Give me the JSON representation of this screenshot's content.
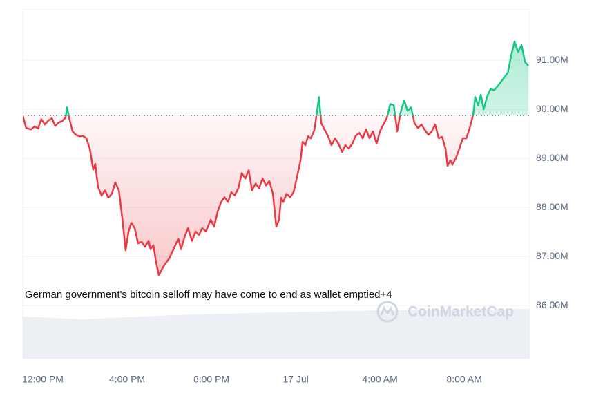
{
  "chart_data": {
    "type": "line",
    "annotation": "German government's bitcoin selloff may have come to end as wallet emptied+4",
    "watermark": "CoinMarketCap",
    "baseline": 89.87,
    "color_above": "#16c784",
    "color_below": "#ea3943",
    "ylim": [
      84.92,
      92.03
    ],
    "yticks": [
      {
        "value": 86,
        "label": "86.00M"
      },
      {
        "value": 87,
        "label": "87.00M"
      },
      {
        "value": 88,
        "label": "88.00M"
      },
      {
        "value": 89,
        "label": "89.00M"
      },
      {
        "value": 90,
        "label": "90.00M"
      },
      {
        "value": 91,
        "label": "91.00M"
      }
    ],
    "xlim": [
      -0.95,
      23.11
    ],
    "xticks": [
      {
        "value": 0,
        "label": "12:00 PM"
      },
      {
        "value": 4,
        "label": "4:00 PM"
      },
      {
        "value": 8,
        "label": "8:00 PM"
      },
      {
        "value": 12,
        "label": "17 Jul"
      },
      {
        "value": 16,
        "label": "4:00 AM"
      },
      {
        "value": 20,
        "label": "8:00 AM"
      }
    ],
    "x": [
      -0.95,
      -0.79,
      -0.56,
      -0.39,
      -0.23,
      -0.07,
      0.1,
      0.26,
      0.43,
      0.59,
      0.75,
      0.92,
      1.08,
      1.15,
      1.25,
      1.41,
      1.57,
      1.74,
      1.9,
      2.07,
      2.23,
      2.39,
      2.49,
      2.62,
      2.79,
      2.95,
      3.11,
      3.28,
      3.44,
      3.61,
      3.77,
      3.93,
      4.07,
      4.2,
      4.36,
      4.52,
      4.69,
      4.85,
      5.02,
      5.11,
      5.25,
      5.38,
      5.51,
      5.67,
      5.84,
      6.0,
      6.16,
      6.33,
      6.43,
      6.56,
      6.72,
      6.89,
      7.08,
      7.25,
      7.41,
      7.57,
      7.74,
      7.97,
      8.13,
      8.3,
      8.46,
      8.62,
      8.79,
      8.95,
      9.11,
      9.28,
      9.44,
      9.61,
      9.77,
      9.93,
      10.1,
      10.26,
      10.43,
      10.59,
      10.75,
      10.92,
      11.08,
      11.21,
      11.31,
      11.41,
      11.57,
      11.74,
      11.9,
      12.07,
      12.23,
      12.33,
      12.46,
      12.59,
      12.72,
      12.89,
      12.98,
      13.11,
      13.21,
      13.38,
      13.54,
      13.7,
      13.87,
      14.03,
      14.2,
      14.36,
      14.52,
      14.69,
      14.85,
      15.02,
      15.18,
      15.34,
      15.51,
      15.67,
      15.84,
      16.0,
      16.16,
      16.33,
      16.49,
      16.66,
      16.82,
      16.98,
      17.15,
      17.31,
      17.48,
      17.64,
      17.8,
      17.97,
      18.13,
      18.3,
      18.46,
      18.62,
      18.79,
      18.95,
      19.11,
      19.21,
      19.34,
      19.44,
      19.61,
      19.77,
      19.93,
      20.1,
      20.26,
      20.43,
      20.52,
      20.66,
      20.79,
      20.92,
      21.08,
      21.25,
      21.41,
      21.57,
      21.74,
      21.9,
      22.07,
      22.23,
      22.39,
      22.56,
      22.72,
      22.89,
      23.05
    ],
    "values": [
      89.87,
      89.62,
      89.59,
      89.65,
      89.61,
      89.8,
      89.69,
      89.77,
      89.82,
      89.66,
      89.73,
      89.76,
      89.83,
      90.04,
      89.83,
      89.55,
      89.48,
      89.45,
      89.46,
      89.41,
      89.2,
      88.77,
      88.89,
      88.42,
      88.24,
      88.35,
      88.2,
      88.28,
      88.51,
      88.35,
      87.79,
      87.13,
      87.51,
      87.69,
      87.58,
      87.27,
      87.3,
      87.2,
      87.32,
      87.15,
      87.23,
      86.87,
      86.62,
      86.76,
      86.87,
      86.96,
      87.11,
      87.27,
      87.37,
      87.15,
      87.39,
      87.58,
      87.32,
      87.51,
      87.44,
      87.58,
      87.51,
      87.75,
      87.61,
      87.92,
      88.11,
      88.21,
      88.11,
      88.31,
      88.25,
      88.39,
      88.7,
      88.59,
      88.76,
      88.35,
      88.49,
      88.39,
      88.59,
      88.45,
      88.54,
      88.28,
      87.61,
      87.75,
      88.2,
      88.11,
      88.28,
      88.21,
      88.31,
      88.63,
      88.96,
      89.34,
      89.27,
      89.45,
      89.41,
      89.58,
      89.86,
      90.25,
      89.72,
      89.58,
      89.45,
      89.27,
      89.41,
      89.3,
      89.13,
      89.27,
      89.2,
      89.3,
      89.46,
      89.52,
      89.41,
      89.59,
      89.41,
      89.55,
      89.3,
      89.55,
      89.69,
      89.83,
      90.11,
      90.08,
      89.55,
      89.94,
      90.18,
      89.97,
      90.04,
      89.72,
      89.62,
      89.69,
      89.58,
      89.48,
      89.55,
      89.69,
      89.41,
      89.44,
      89.2,
      88.85,
      88.96,
      88.87,
      89.01,
      89.2,
      89.41,
      89.41,
      89.62,
      89.9,
      90.25,
      90.08,
      90.3,
      90.0,
      90.25,
      90.42,
      90.39,
      90.46,
      90.56,
      90.65,
      90.75,
      91.1,
      91.38,
      91.17,
      91.31,
      90.96,
      90.89
    ]
  }
}
